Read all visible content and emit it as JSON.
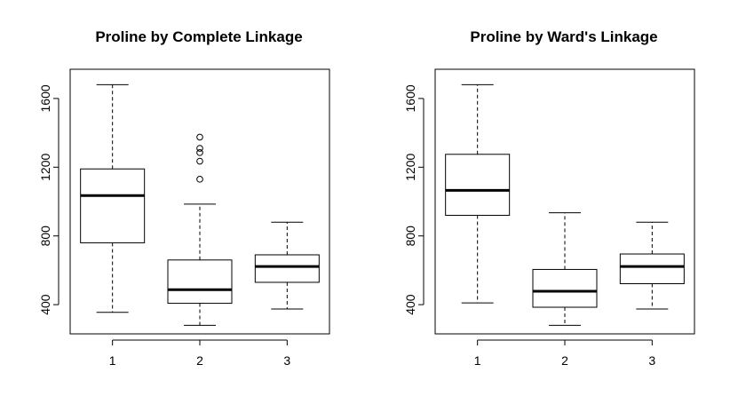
{
  "chart_data": [
    {
      "type": "boxplot",
      "title": "Proline by Complete Linkage",
      "xlabel": "",
      "ylabel": "",
      "categories": [
        "1",
        "2",
        "3"
      ],
      "ylim": [
        230,
        1770
      ],
      "yticks": [
        400,
        800,
        1200,
        1600
      ],
      "boxes": [
        {
          "category": "1",
          "whisker_low": 355,
          "q1": 760,
          "median": 1035,
          "q3": 1190,
          "whisker_high": 1680,
          "outliers": []
        },
        {
          "category": "2",
          "whisker_low": 280,
          "q1": 408,
          "median": 487,
          "q3": 660,
          "whisker_high": 985,
          "outliers": [
            1130,
            1235,
            1285,
            1310,
            1375
          ]
        },
        {
          "category": "3",
          "whisker_low": 375,
          "q1": 530,
          "median": 622,
          "q3": 690,
          "whisker_high": 880,
          "outliers": []
        }
      ]
    },
    {
      "type": "boxplot",
      "title": "Proline by Ward's Linkage",
      "xlabel": "",
      "ylabel": "",
      "categories": [
        "1",
        "2",
        "3"
      ],
      "ylim": [
        230,
        1770
      ],
      "yticks": [
        400,
        800,
        1200,
        1600
      ],
      "boxes": [
        {
          "category": "1",
          "whisker_low": 410,
          "q1": 920,
          "median": 1065,
          "q3": 1275,
          "whisker_high": 1680,
          "outliers": []
        },
        {
          "category": "2",
          "whisker_low": 280,
          "q1": 385,
          "median": 478,
          "q3": 605,
          "whisker_high": 935,
          "outliers": []
        },
        {
          "category": "3",
          "whisker_low": 375,
          "q1": 522,
          "median": 622,
          "q3": 695,
          "whisker_high": 880,
          "outliers": []
        }
      ]
    }
  ]
}
